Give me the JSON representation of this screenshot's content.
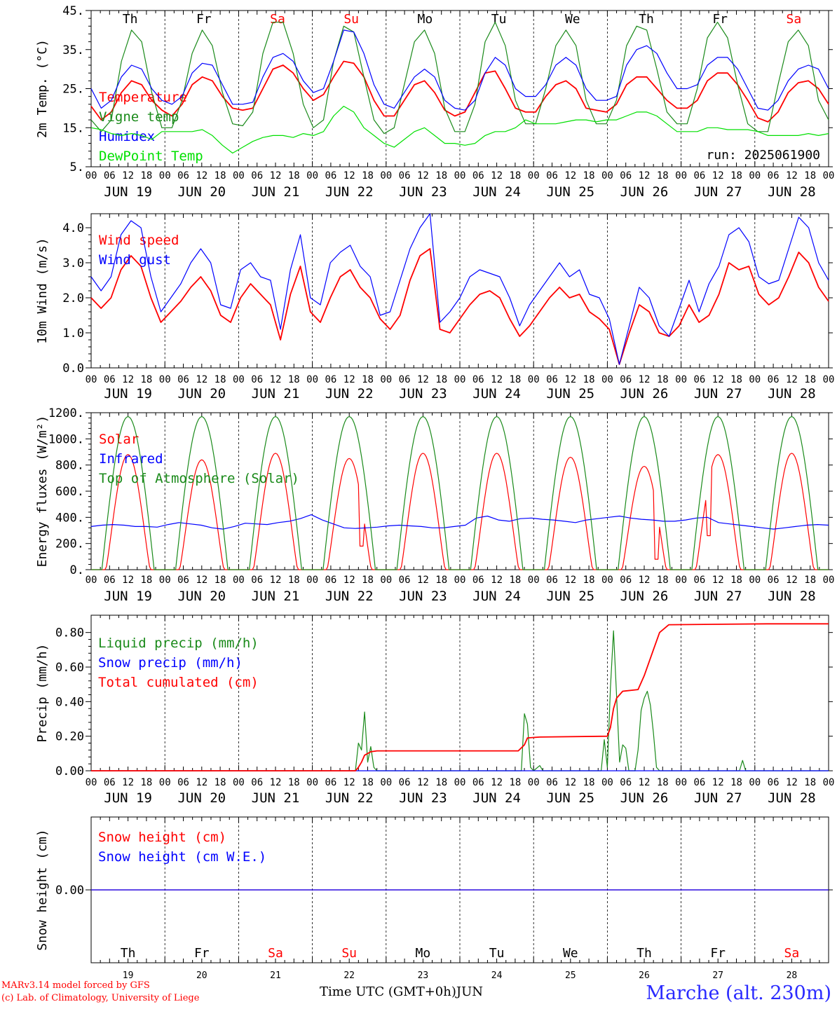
{
  "footer": {
    "credit_line1": "MARv3.14 model forced by GFS",
    "credit_line2": "(c) Lab. of Climatology, University of Liege",
    "time_axis_label": "Time UTC (GMT+0h)",
    "month_label": "JUN",
    "station": "Marche (alt. 230m)"
  },
  "colors": {
    "red": "#ff0000",
    "green": "#1a8a1a",
    "blue": "#0000ff",
    "lightgreen": "#00e000",
    "weekend": "#ff0000",
    "weekday": "#000000"
  },
  "days": {
    "names": [
      "Th",
      "Fr",
      "Sa",
      "Su",
      "Mo",
      "Tu",
      "We",
      "Th",
      "Fr",
      "Sa"
    ],
    "weekend": [
      false,
      false,
      true,
      true,
      false,
      false,
      false,
      false,
      false,
      true
    ],
    "dates": [
      "JUN 19",
      "JUN 20",
      "JUN 21",
      "JUN 22",
      "JUN 23",
      "JUN 24",
      "JUN 25",
      "JUN 26",
      "JUN 27",
      "JUN 28"
    ],
    "numbers": [
      "19",
      "20",
      "21",
      "22",
      "23",
      "24",
      "25",
      "26",
      "27",
      "28"
    ],
    "hour_ticks": [
      "00",
      "06",
      "12",
      "18"
    ],
    "end_tick": "00"
  },
  "chart_data": [
    {
      "type": "line",
      "id": "temp",
      "ylabel": "2m Temp. (°C)",
      "ylim": [
        5,
        45
      ],
      "yticks": [
        "5.",
        "15.",
        "25.",
        "35.",
        "45."
      ],
      "show_day_names": true,
      "annotation": "run: 2025061900",
      "series": [
        {
          "name": "Temperature",
          "color": "red",
          "values": [
            20.5,
            17,
            19,
            24,
            27,
            26,
            22,
            19.5,
            18,
            21,
            26,
            28,
            27,
            23,
            20,
            19.5,
            20,
            25,
            30,
            31,
            29,
            25,
            22,
            23.5,
            28,
            32,
            31.5,
            28,
            22,
            18,
            18,
            22,
            26,
            27,
            24,
            19.5,
            18,
            19,
            24,
            29,
            29.5,
            25,
            20,
            19,
            19,
            23,
            26,
            27,
            25,
            20,
            19.5,
            19,
            21,
            26,
            28,
            28,
            25,
            22,
            20,
            20,
            22,
            27,
            29,
            29,
            26,
            22,
            17.5,
            16.5,
            19,
            24,
            26.5,
            27,
            25,
            21
          ]
        },
        {
          "name": "Vigne temp",
          "color": "green",
          "values": [
            17,
            14,
            17,
            32,
            40,
            37,
            24,
            15,
            15,
            22,
            34,
            40,
            36,
            24,
            16,
            15.5,
            19,
            34,
            42,
            42,
            34,
            21,
            15,
            17,
            32,
            41,
            39.5,
            28,
            17,
            13.5,
            15,
            26,
            37,
            40,
            34,
            20,
            14,
            14,
            21,
            37,
            42,
            36,
            22,
            16,
            16,
            25,
            36,
            40,
            36,
            22,
            16,
            16,
            22,
            36,
            41,
            40,
            30,
            19,
            16,
            16,
            25,
            38,
            42,
            38,
            26,
            16,
            14,
            14,
            26,
            37,
            40,
            36,
            22,
            17
          ]
        },
        {
          "name": "Humidex",
          "color": "blue",
          "values": [
            25,
            20,
            22,
            28,
            31,
            30,
            25,
            22,
            21,
            23,
            29,
            31.5,
            31,
            26,
            21,
            21,
            21.5,
            28,
            33,
            34,
            32,
            27,
            24,
            25,
            32,
            40,
            39.5,
            34,
            26,
            21,
            20,
            24,
            28,
            30,
            28,
            22,
            20,
            19.5,
            22,
            29,
            33,
            31,
            25,
            23,
            23,
            26,
            31,
            33,
            31,
            25,
            22,
            22,
            23,
            31,
            35,
            36,
            34,
            29,
            25,
            25,
            26,
            31,
            33,
            33,
            30,
            25,
            20,
            19.5,
            22,
            27,
            30,
            31,
            30,
            25
          ]
        },
        {
          "name": "DewPoint Temp",
          "color": "lightgreen",
          "values": [
            15,
            14.5,
            13.5,
            13,
            13.5,
            13,
            12,
            14,
            14,
            14,
            14,
            14.5,
            13,
            10.5,
            8.5,
            10,
            11.5,
            12.5,
            13,
            13,
            12.5,
            13.5,
            13,
            14,
            18,
            20.5,
            19,
            15,
            13,
            11,
            10,
            12,
            14,
            15,
            13,
            11,
            11,
            10.5,
            11,
            13,
            14,
            14,
            15,
            17,
            16,
            16,
            16,
            16.5,
            17,
            17,
            16.5,
            17,
            17,
            18,
            19,
            19,
            18,
            16,
            14,
            14,
            14,
            15,
            15,
            14.5,
            14.5,
            14.5,
            14,
            13,
            13,
            13,
            13,
            13.5,
            13,
            13.5
          ]
        }
      ]
    },
    {
      "type": "line",
      "id": "wind",
      "ylabel": "10m Wind (m/s)",
      "ylim": [
        0,
        4.4
      ],
      "yticks": [
        "0.0",
        "1.0",
        "2.0",
        "3.0",
        "4.0"
      ],
      "series": [
        {
          "name": "Wind speed",
          "color": "red",
          "values": [
            2.0,
            1.7,
            2.0,
            2.8,
            3.2,
            2.9,
            2.0,
            1.3,
            1.6,
            1.9,
            2.3,
            2.6,
            2.2,
            1.5,
            1.3,
            2.0,
            2.4,
            2.1,
            1.8,
            0.8,
            2.1,
            2.9,
            1.6,
            1.3,
            2.0,
            2.6,
            2.8,
            2.3,
            2.0,
            1.4,
            1.1,
            1.5,
            2.5,
            3.2,
            3.4,
            1.1,
            1.0,
            1.4,
            1.8,
            2.1,
            2.2,
            2.0,
            1.4,
            0.9,
            1.2,
            1.6,
            2.0,
            2.3,
            2.0,
            2.1,
            1.6,
            1.4,
            1.1,
            0.1,
            1.0,
            1.8,
            1.6,
            1.0,
            0.9,
            1.2,
            1.8,
            1.3,
            1.5,
            2.1,
            3.0,
            2.8,
            2.9,
            2.1,
            1.8,
            2.0,
            2.6,
            3.3,
            3.0,
            2.3,
            1.9
          ]
        },
        {
          "name": "Wind gust",
          "color": "blue",
          "values": [
            2.6,
            2.2,
            2.6,
            3.8,
            4.2,
            4.0,
            2.6,
            1.6,
            2.0,
            2.4,
            3.0,
            3.4,
            3.0,
            1.8,
            1.7,
            2.8,
            3.0,
            2.6,
            2.5,
            1.1,
            2.8,
            3.8,
            2.0,
            1.8,
            3.0,
            3.3,
            3.5,
            2.9,
            2.6,
            1.5,
            1.6,
            2.5,
            3.4,
            4.0,
            4.4,
            1.3,
            1.6,
            2.0,
            2.6,
            2.8,
            2.7,
            2.6,
            2.0,
            1.2,
            1.8,
            2.2,
            2.6,
            3.0,
            2.6,
            2.8,
            2.1,
            2.0,
            1.4,
            0.1,
            1.2,
            2.3,
            2.0,
            1.2,
            0.9,
            1.7,
            2.5,
            1.6,
            2.4,
            2.9,
            3.8,
            4.0,
            3.6,
            2.6,
            2.4,
            2.5,
            3.4,
            4.3,
            4.0,
            3.0,
            2.5
          ]
        }
      ]
    },
    {
      "type": "line",
      "id": "energy",
      "ylabel": "Energy fluxes (W/m²)",
      "ylim": [
        0,
        1200
      ],
      "yticks": [
        "0.",
        "200.",
        "400.",
        "600.",
        "800.",
        "1000.",
        "1200."
      ],
      "series": [
        {
          "name": "Solar",
          "color": "red",
          "daily_peaks": [
            880,
            840,
            890,
            850,
            890,
            890,
            860,
            790,
            880,
            890
          ],
          "dips": [
            {
              "day": 3,
              "hour": 16,
              "value": 180
            },
            {
              "day": 7,
              "hour": 16,
              "value": 80
            },
            {
              "day": 8,
              "hour": 9,
              "value": 260
            }
          ]
        },
        {
          "name": "Infrared",
          "color": "blue",
          "values": [
            330,
            340,
            345,
            340,
            330,
            330,
            325,
            345,
            360,
            350,
            340,
            320,
            310,
            330,
            355,
            350,
            345,
            360,
            370,
            390,
            420,
            380,
            350,
            320,
            315,
            320,
            325,
            335,
            340,
            335,
            330,
            320,
            320,
            330,
            340,
            395,
            410,
            380,
            370,
            390,
            395,
            385,
            380,
            370,
            360,
            380,
            390,
            400,
            410,
            395,
            385,
            380,
            370,
            370,
            380,
            395,
            400,
            360,
            350,
            340,
            330,
            320,
            310,
            320,
            330,
            340,
            345,
            340
          ]
        },
        {
          "name": "Top of Atmosphere (Solar)",
          "color": "green",
          "daily_peak": 1170
        }
      ]
    },
    {
      "type": "line",
      "id": "precip",
      "ylabel": "Precip (mm/h)",
      "ylim": [
        0,
        0.9
      ],
      "yticks": [
        "0.00",
        "0.20",
        "0.40",
        "0.60",
        "0.80"
      ],
      "series": [
        {
          "name": "Liquid precip (mm/h)",
          "color": "green",
          "points": [
            [
              0,
              0
            ],
            [
              86,
              0
            ],
            [
              87,
              0.16
            ],
            [
              88,
              0.12
            ],
            [
              89,
              0.34
            ],
            [
              90,
              0.05
            ],
            [
              91,
              0.14
            ],
            [
              92,
              0.02
            ],
            [
              93,
              0
            ],
            [
              140,
              0
            ],
            [
              141,
              0.33
            ],
            [
              142,
              0.27
            ],
            [
              143,
              0.02
            ],
            [
              144,
              0
            ],
            [
              146,
              0.03
            ],
            [
              147,
              0
            ],
            [
              166,
              0
            ],
            [
              167,
              0.18
            ],
            [
              168,
              0.02
            ],
            [
              169,
              0.48
            ],
            [
              170,
              0.81
            ],
            [
              171,
              0.43
            ],
            [
              172,
              0.05
            ],
            [
              173,
              0.15
            ],
            [
              174,
              0.13
            ],
            [
              175,
              0
            ],
            [
              177,
              0
            ],
            [
              178,
              0.12
            ],
            [
              179,
              0.35
            ],
            [
              180,
              0.42
            ],
            [
              181,
              0.46
            ],
            [
              182,
              0.38
            ],
            [
              183,
              0.22
            ],
            [
              184,
              0.02
            ],
            [
              185,
              0
            ],
            [
              211,
              0
            ],
            [
              212,
              0.06
            ],
            [
              213,
              0
            ],
            [
              240,
              0
            ]
          ]
        },
        {
          "name": "Snow precip (mm/h)",
          "color": "blue",
          "values": [
            0,
            0
          ]
        },
        {
          "name": "Total cumulated (cm)",
          "color": "red",
          "points": [
            [
              0,
              0
            ],
            [
              86,
              0
            ],
            [
              87,
              0.02
            ],
            [
              88,
              0.05
            ],
            [
              89,
              0.09
            ],
            [
              91,
              0.11
            ],
            [
              93,
              0.115
            ],
            [
              139,
              0.115
            ],
            [
              141,
              0.15
            ],
            [
              142,
              0.19
            ],
            [
              146,
              0.195
            ],
            [
              168,
              0.2
            ],
            [
              169,
              0.25
            ],
            [
              170,
              0.36
            ],
            [
              171,
              0.42
            ],
            [
              173,
              0.46
            ],
            [
              178,
              0.47
            ],
            [
              180,
              0.55
            ],
            [
              183,
              0.7
            ],
            [
              185,
              0.8
            ],
            [
              188,
              0.845
            ],
            [
              220,
              0.85
            ],
            [
              240,
              0.85
            ]
          ]
        }
      ]
    },
    {
      "type": "line",
      "id": "snow",
      "ylabel": "Snow height (cm)",
      "ylim": [
        -1,
        1
      ],
      "yticks": [
        "0.00"
      ],
      "show_day_names": true,
      "bottom_numbers": true,
      "series": [
        {
          "name": "Snow height (cm)",
          "color": "red",
          "values": [
            0,
            0
          ]
        },
        {
          "name": "Snow height (cm W.E.)",
          "color": "blue",
          "values": [
            0,
            0
          ]
        }
      ]
    }
  ]
}
